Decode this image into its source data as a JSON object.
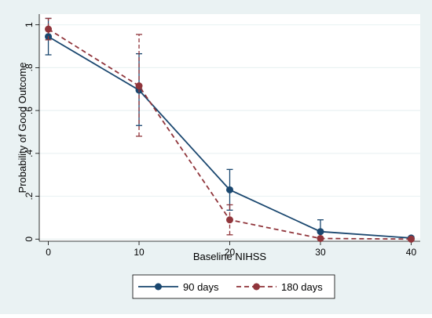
{
  "chart_data": {
    "type": "line",
    "title": "",
    "xlabel": "Baseline NIHSS",
    "ylabel": "Probability of Good Outcome",
    "x": [
      0,
      10,
      20,
      30,
      40
    ],
    "xticks": [
      {
        "value": 0,
        "label": "0"
      },
      {
        "value": 10,
        "label": "10"
      },
      {
        "value": 20,
        "label": "20"
      },
      {
        "value": 30,
        "label": "30"
      },
      {
        "value": 40,
        "label": "40"
      }
    ],
    "yticks": [
      {
        "value": 0,
        "label": "0"
      },
      {
        "value": 0.2,
        "label": ".2"
      },
      {
        "value": 0.4,
        "label": ".4"
      },
      {
        "value": 0.6,
        "label": ".6"
      },
      {
        "value": 0.8,
        "label": ".8"
      },
      {
        "value": 1.0,
        "label": "1"
      }
    ],
    "xlim": [
      -1,
      41
    ],
    "ylim": [
      -0.01,
      1.05
    ],
    "grid": "horizontal",
    "legend_position": "bottom",
    "series": [
      {
        "name": "90 days",
        "color": "#1a476f",
        "dash": "solid",
        "values": [
          0.945,
          0.695,
          0.23,
          0.035,
          0.005
        ],
        "ci_low": [
          0.86,
          0.53,
          0.135,
          0.0,
          0.0
        ],
        "ci_high": [
          1.03,
          0.865,
          0.325,
          0.09,
          0.012
        ]
      },
      {
        "name": "180 days",
        "color": "#90353b",
        "dash": "dashed",
        "values": [
          0.98,
          0.715,
          0.09,
          0.003,
          0.0
        ],
        "ci_low": [
          0.93,
          0.48,
          0.02,
          0.0,
          0.0
        ],
        "ci_high": [
          1.03,
          0.955,
          0.16,
          0.006,
          0.002
        ]
      }
    ]
  }
}
